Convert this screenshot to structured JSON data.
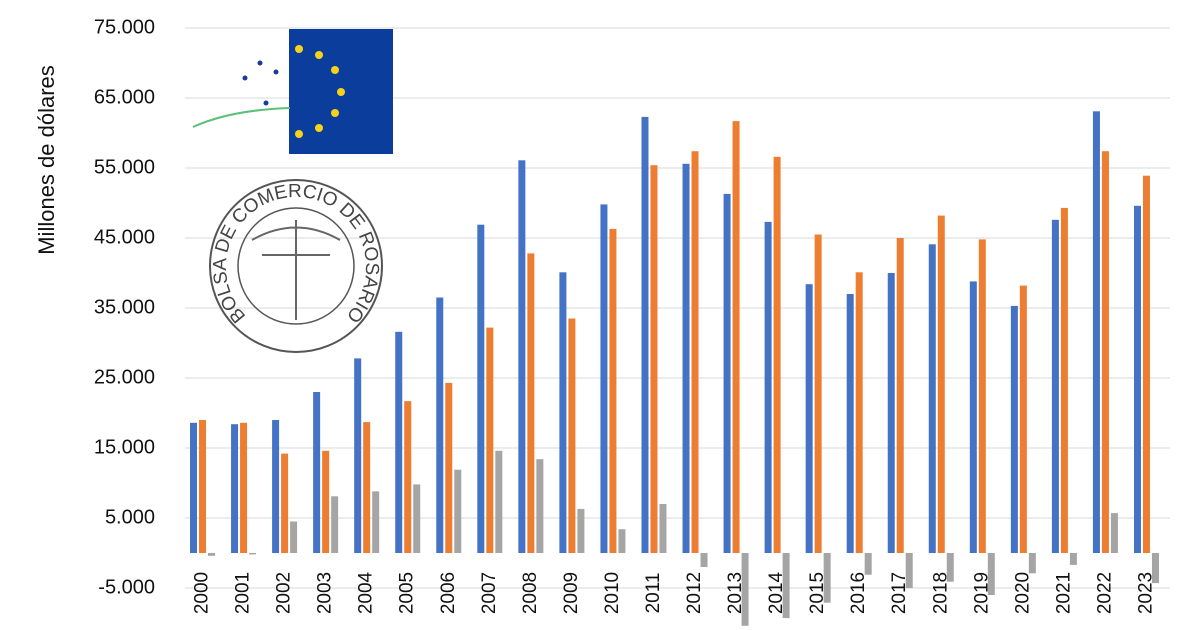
{
  "chart_data": {
    "type": "bar",
    "y_label": "Millones de dólares",
    "annotations": [
      "BOLSA DE COMERCIO DE ROSARIO"
    ],
    "categories": [
      "2000",
      "2001",
      "2002",
      "2003",
      "2004",
      "2005",
      "2006",
      "2007",
      "2008",
      "2009",
      "2010",
      "2011",
      "2012",
      "2013",
      "2014",
      "2015",
      "2016",
      "2017",
      "2018",
      "2019",
      "2020",
      "2021",
      "2022",
      "2023"
    ],
    "series": [
      {
        "color": "#4472c4",
        "values": [
          18600,
          18400,
          19000,
          23000,
          27800,
          31600,
          36500,
          46900,
          56100,
          40100,
          49800,
          62300,
          55600,
          51300,
          47300,
          38400,
          37000,
          40000,
          44100,
          38800,
          35300,
          47600,
          63100,
          49600
        ]
      },
      {
        "color": "#ed7d31",
        "values": [
          19000,
          18600,
          14200,
          14600,
          18700,
          21700,
          24300,
          32200,
          42800,
          33500,
          46300,
          55400,
          57400,
          61700,
          56600,
          45500,
          40100,
          45000,
          48200,
          44800,
          38200,
          49300,
          57400,
          53900
        ]
      },
      {
        "color": "#a5a5a5",
        "values": [
          -400,
          -200,
          4500,
          8100,
          8800,
          9800,
          11900,
          14600,
          13400,
          6300,
          3400,
          7000,
          -2000,
          -10400,
          -9300,
          -7100,
          -3100,
          -5000,
          -4100,
          -6000,
          -2900,
          -1700,
          5700,
          -4300
        ]
      }
    ],
    "ylim": [
      -11000,
      79000
    ],
    "yticks": [
      {
        "value": -5000,
        "label": "-5.000"
      },
      {
        "value": 5000,
        "label": "5.000"
      },
      {
        "value": 15000,
        "label": "15.000"
      },
      {
        "value": 25000,
        "label": "25.000"
      },
      {
        "value": 35000,
        "label": "35.000"
      },
      {
        "value": 45000,
        "label": "45.000"
      },
      {
        "value": 55000,
        "label": "55.000"
      },
      {
        "value": 65000,
        "label": "65.000"
      },
      {
        "value": 75000,
        "label": "75.000"
      }
    ],
    "grid": true
  }
}
